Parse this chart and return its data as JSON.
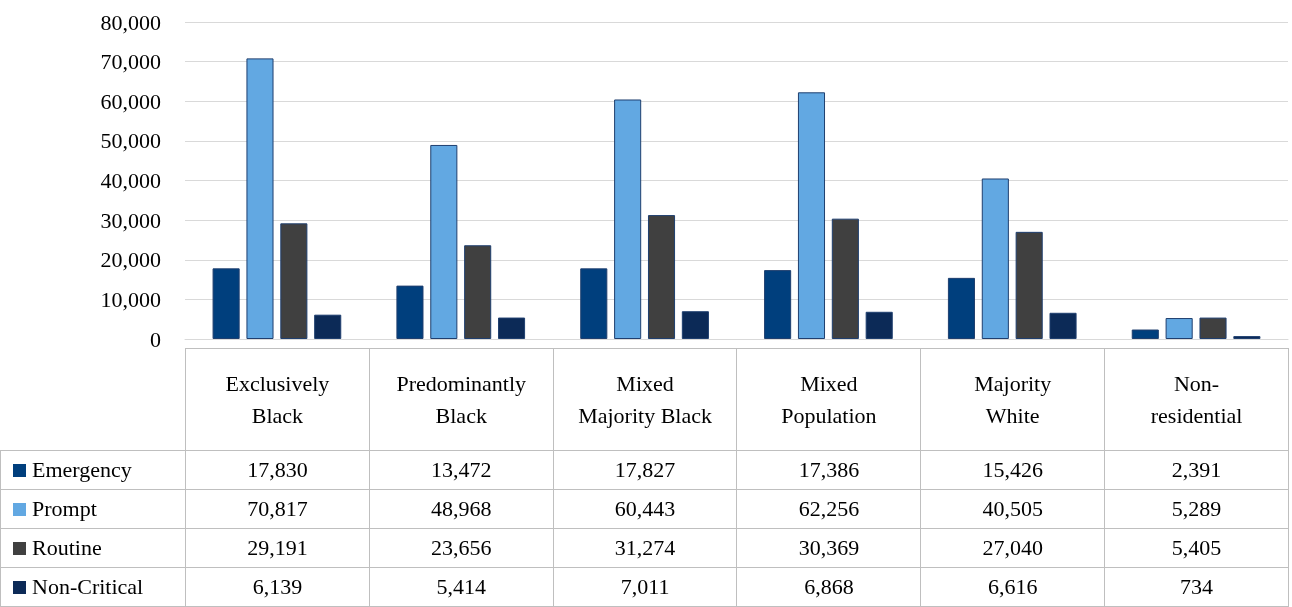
{
  "chart_data": {
    "type": "bar",
    "categories": [
      "Exclusively Black",
      "Predominantly Black",
      "Mixed Majority Black",
      "Mixed Population",
      "Majority White",
      "Non-residential"
    ],
    "series": [
      {
        "name": "Emergency",
        "color": "#003f7d",
        "values": [
          17830,
          13472,
          17827,
          17386,
          15426,
          2391
        ],
        "value_labels": [
          "17,830",
          "13,472",
          "17,827",
          "17,386",
          "15,426",
          "2,391"
        ]
      },
      {
        "name": "Prompt",
        "color": "#62a8e2",
        "values": [
          70817,
          48968,
          60443,
          62256,
          40505,
          5289
        ],
        "value_labels": [
          "70,817",
          "48,968",
          "60,443",
          "62,256",
          "40,505",
          "5,289"
        ]
      },
      {
        "name": "Routine",
        "color": "#404040",
        "values": [
          29191,
          23656,
          31274,
          30369,
          27040,
          5405
        ],
        "value_labels": [
          "29,191",
          "23,656",
          "31,274",
          "30,369",
          "27,040",
          "5,405"
        ]
      },
      {
        "name": "Non-Critical",
        "color": "#0c2a57",
        "values": [
          6139,
          5414,
          7011,
          6868,
          6616,
          734
        ],
        "value_labels": [
          "6,139",
          "5,414",
          "7,011",
          "6,868",
          "6,616",
          "734"
        ]
      }
    ],
    "ylim": [
      0,
      80000
    ],
    "yticks": [
      0,
      {
        "value": 10000,
        "label": "10,000"
      },
      {
        "value": 20000,
        "label": "20,000"
      },
      {
        "value": 30000,
        "label": "30,000"
      },
      {
        "value": 40000,
        "label": "40,000"
      },
      {
        "value": 50000,
        "label": "50,000"
      },
      {
        "value": 60000,
        "label": "60,000"
      },
      {
        "value": 70000,
        "label": "70,000"
      },
      {
        "value": 80000,
        "label": "80,000"
      }
    ],
    "grid": "y",
    "legend": "bottom"
  }
}
